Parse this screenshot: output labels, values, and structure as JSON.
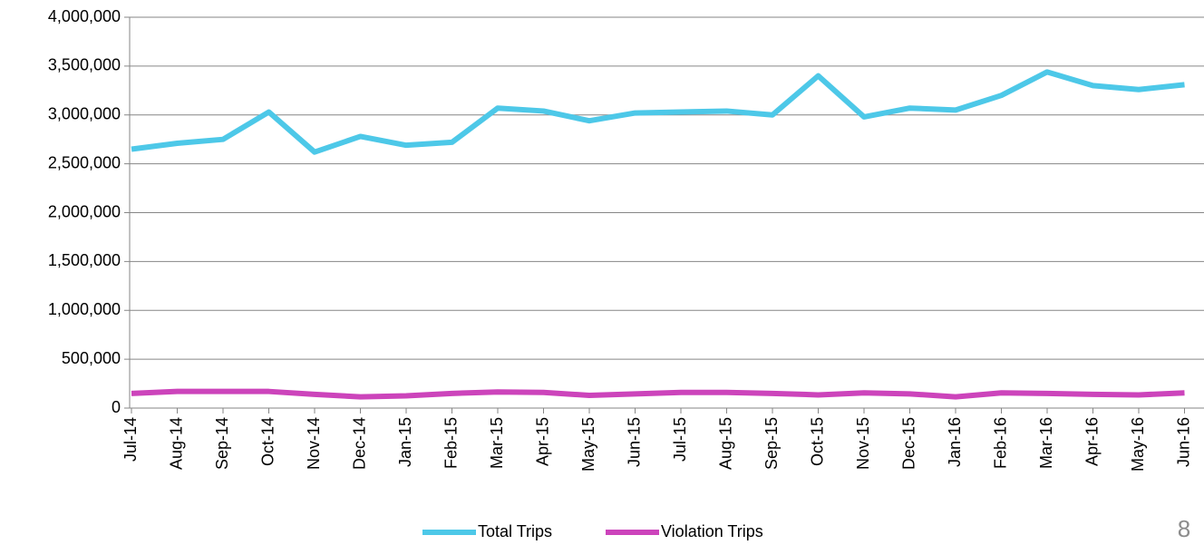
{
  "chart_data": {
    "type": "line",
    "categories": [
      "Jul-14",
      "Aug-14",
      "Sep-14",
      "Oct-14",
      "Nov-14",
      "Dec-14",
      "Jan-15",
      "Feb-15",
      "Mar-15",
      "Apr-15",
      "May-15",
      "Jun-15",
      "Jul-15",
      "Aug-15",
      "Sep-15",
      "Oct-15",
      "Nov-15",
      "Dec-15",
      "Jan-16",
      "Feb-16",
      "Mar-16",
      "Apr-16",
      "May-16",
      "Jun-16"
    ],
    "series": [
      {
        "name": "Total Trips",
        "color": "#4dc8e8",
        "values": [
          2650000,
          2710000,
          2750000,
          3030000,
          2620000,
          2780000,
          2690000,
          2720000,
          3070000,
          3040000,
          2940000,
          3020000,
          3030000,
          3040000,
          3000000,
          3400000,
          2980000,
          3070000,
          3050000,
          3200000,
          3440000,
          3300000,
          3260000,
          3310000
        ]
      },
      {
        "name": "Violation Trips",
        "color": "#cc44bb",
        "values": [
          150000,
          170000,
          170000,
          170000,
          140000,
          115000,
          125000,
          150000,
          165000,
          160000,
          130000,
          145000,
          160000,
          160000,
          150000,
          135000,
          155000,
          145000,
          115000,
          155000,
          150000,
          140000,
          135000,
          155000
        ]
      }
    ],
    "ylim": [
      0,
      4000000
    ],
    "yticks": [
      0,
      {
        "value": 500000,
        "label": "500,000"
      },
      {
        "value": 1000000,
        "label": "1,000,000"
      },
      {
        "value": 1500000,
        "label": "1,500,000"
      },
      {
        "value": 2000000,
        "label": "2,000,000"
      },
      {
        "value": 2500000,
        "label": "2,500,000"
      },
      {
        "value": 3000000,
        "label": "3,000,000"
      },
      {
        "value": 3500000,
        "label": "3,500,000"
      },
      {
        "value": 4000000,
        "label": "4,000,000"
      }
    ],
    "grid": true,
    "legend": "bottom"
  },
  "page_number": "8"
}
